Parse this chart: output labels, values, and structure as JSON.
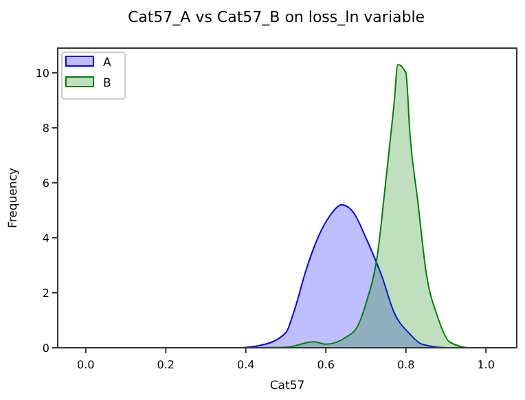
{
  "chart_data": {
    "type": "area",
    "title": "Cat57_A vs Cat57_B on loss_ln variable",
    "xlabel": "Cat57",
    "ylabel": "Frequency",
    "xlim": [
      -0.07,
      1.077
    ],
    "ylim": [
      0,
      10.9
    ],
    "xticks": [
      {
        "value": 0,
        "label": "0.0"
      },
      {
        "value": 0.2,
        "label": "0.2"
      },
      {
        "value": 0.4,
        "label": "0.4"
      },
      {
        "value": 0.6,
        "label": "0.6"
      },
      {
        "value": 0.8,
        "label": "0.8"
      },
      {
        "value": 1,
        "label": "1.0"
      }
    ],
    "yticks": [
      0,
      2,
      4,
      6,
      8,
      10
    ],
    "grid": false,
    "legend": "top left",
    "series": [
      {
        "name": "A",
        "color": "#0000ff",
        "x": [
          -0.02,
          0.38,
          0.44,
          0.5,
          0.52,
          0.55,
          0.58,
          0.61,
          0.64,
          0.67,
          0.7,
          0.74,
          0.77,
          0.81,
          0.84,
          0.9,
          1.02
        ],
        "values": [
          0,
          0,
          0.1,
          0.55,
          1.3,
          2.8,
          4,
          4.8,
          5.2,
          4.9,
          4,
          2.6,
          1.3,
          0.5,
          0.13,
          0,
          0
        ]
      },
      {
        "name": "B",
        "color": "#008000",
        "x": [
          0.37,
          0.5,
          0.57,
          0.6,
          0.65,
          0.68,
          0.7,
          0.73,
          0.75,
          0.77,
          0.78,
          0.8,
          0.81,
          0.83,
          0.85,
          0.88,
          0.91,
          0.96,
          1.02
        ],
        "values": [
          0,
          0.02,
          0.22,
          0.13,
          0.38,
          0.8,
          1.6,
          3.5,
          6.1,
          8.8,
          10.3,
          10,
          7.8,
          5.3,
          2.8,
          1.1,
          0.2,
          0,
          0
        ]
      }
    ]
  }
}
